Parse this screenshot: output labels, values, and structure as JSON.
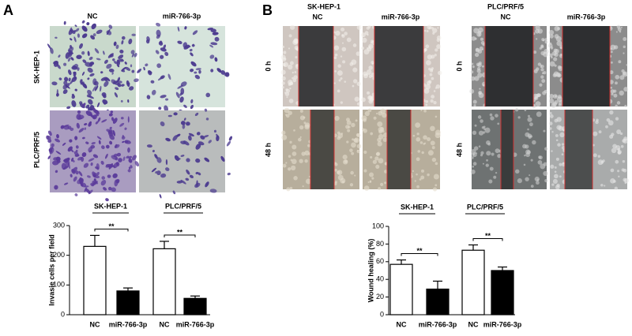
{
  "panels": {
    "a": {
      "label": "A",
      "columns": [
        "NC",
        "miR-766-3p"
      ],
      "rows": [
        "SK-HEP-1",
        "PLC/PRF/5"
      ]
    },
    "b": {
      "label": "B",
      "rows": [
        "0 h",
        "48 h"
      ],
      "groups": [
        {
          "title": "SK-HEP-1",
          "columns": [
            "NC",
            "miR-766-3p"
          ]
        },
        {
          "title": "PLC/PRF/5",
          "columns": [
            "NC",
            "miR-766-3p"
          ]
        }
      ]
    }
  },
  "chart_data": [
    {
      "type": "bar",
      "ylabel": "Invasie cells per field",
      "group_labels": [
        "SK-HEP-1",
        "PLC/PRF/5"
      ],
      "categories": [
        "NC",
        "miR-766-3p",
        "NC",
        "miR-766-3p"
      ],
      "values": [
        230,
        80,
        222,
        55
      ],
      "errors": [
        37,
        10,
        25,
        8
      ],
      "colors": [
        "#ffffff",
        "#000000",
        "#ffffff",
        "#000000"
      ],
      "significance": [
        "**",
        "**"
      ],
      "ylim": [
        0,
        300
      ],
      "yticks": [
        0,
        100,
        200,
        300
      ]
    },
    {
      "type": "bar",
      "ylabel": "Wound healing (%)",
      "group_labels": [
        "SK-HEP-1",
        "PLC/PRF/5"
      ],
      "categories": [
        "NC",
        "miR-766-3p",
        "NC",
        "miR-766-3p"
      ],
      "values": [
        57,
        29,
        73,
        50
      ],
      "errors": [
        5,
        9,
        6,
        4
      ],
      "colors": [
        "#ffffff",
        "#000000",
        "#ffffff",
        "#000000"
      ],
      "significance": [
        "**",
        "**"
      ],
      "ylim": [
        0,
        100
      ],
      "yticks": [
        0,
        20,
        40,
        60,
        80,
        100
      ]
    }
  ]
}
